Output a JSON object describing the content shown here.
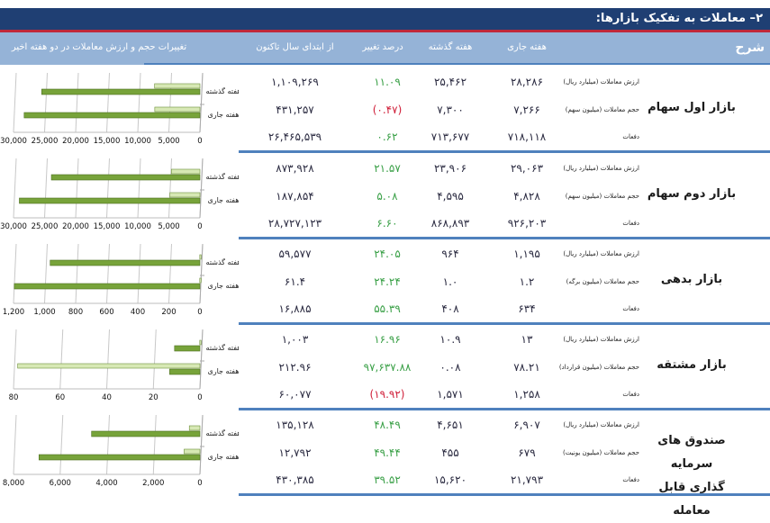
{
  "title": "۲– معاملات به تفکیک بازارها:",
  "header": {
    "description": "شرح",
    "current_week": "هفته جاری",
    "last_week": "هفته گذشته",
    "pct_change": "درصد تغییر",
    "ytd": "از ابتدای سال تاکنون",
    "chart_title": "تغییرات حجم و ارزش معاملات در دو هفته اخیر"
  },
  "colors": {
    "title_band": "#1f3f73",
    "header_band": "#95b3d7",
    "separator": "#4f81bd",
    "positive": "#3aa047",
    "negative": "#d0203a",
    "bar_dark": "#77a33a",
    "bar_light": "#d7e8b5"
  },
  "markets": [
    {
      "name": "بازار اول سهام",
      "rows": [
        {
          "label": "ارزش معاملات (میلیارد ریال)",
          "current": "۲۸,۲۸۶",
          "previous": "۲۵,۴۶۲",
          "pct": "۱۱.۰۹",
          "pct_sign": "pos",
          "ytd": "۱,۱۰۹,۲۶۹"
        },
        {
          "label": "حجم معاملات (میلیون سهم)",
          "current": "۷,۲۶۶",
          "previous": "۷,۳۰۰",
          "pct": "(۰.۴۷)",
          "pct_sign": "neg",
          "ytd": "۴۳۱,۲۵۷"
        },
        {
          "label": "دفعات",
          "current": "۷۱۸,۱۱۸",
          "previous": "۷۱۳,۶۷۷",
          "pct": "۰.۶۲",
          "pct_sign": "pos",
          "ytd": "۲۶,۴۶۵,۵۳۹"
        }
      ]
    },
    {
      "name": "بازار دوم سهام",
      "rows": [
        {
          "label": "ارزش معاملات (میلیارد ریال)",
          "current": "۲۹,۰۶۳",
          "previous": "۲۳,۹۰۶",
          "pct": "۲۱.۵۷",
          "pct_sign": "pos",
          "ytd": "۸۷۳,۹۲۸"
        },
        {
          "label": "حجم معاملات (میلیون سهم)",
          "current": "۴,۸۲۸",
          "previous": "۴,۵۹۵",
          "pct": "۵.۰۸",
          "pct_sign": "pos",
          "ytd": "۱۸۷,۸۵۴"
        },
        {
          "label": "دفعات",
          "current": "۹۲۶,۲۰۳",
          "previous": "۸۶۸,۸۹۳",
          "pct": "۶.۶۰",
          "pct_sign": "pos",
          "ytd": "۲۸,۷۲۷,۱۲۳"
        }
      ]
    },
    {
      "name": "بازار بدهی",
      "rows": [
        {
          "label": "ارزش معاملات (میلیارد ریال)",
          "current": "۱,۱۹۵",
          "previous": "۹۶۴",
          "pct": "۲۴.۰۵",
          "pct_sign": "pos",
          "ytd": "۵۹,۵۷۷"
        },
        {
          "label": "حجم معاملات (میلیون برگه)",
          "current": "۱.۲",
          "previous": "۱.۰",
          "pct": "۲۴.۲۴",
          "pct_sign": "pos",
          "ytd": "۶۱.۴"
        },
        {
          "label": "دفعات",
          "current": "۶۳۴",
          "previous": "۴۰۸",
          "pct": "۵۵.۳۹",
          "pct_sign": "pos",
          "ytd": "۱۶,۸۸۵"
        }
      ]
    },
    {
      "name": "بازار مشتقه",
      "rows": [
        {
          "label": "ارزش معاملات (میلیارد ریال)",
          "current": "۱۳",
          "previous": "۱۰.۹",
          "pct": "۱۶.۹۶",
          "pct_sign": "pos",
          "ytd": "۱,۰۰۳"
        },
        {
          "label": "حجم معاملات (میلیون قرارداد)",
          "current": "۷۸.۲۱",
          "previous": "۰.۰۸",
          "pct": "۹۷,۶۳۷.۸۸",
          "pct_sign": "pos",
          "ytd": "۲۱۲.۹۶"
        },
        {
          "label": "دفعات",
          "current": "۱,۲۵۸",
          "previous": "۱,۵۷۱",
          "pct": "(۱۹.۹۲)",
          "pct_sign": "neg",
          "ytd": "۶۰,۰۷۷"
        }
      ]
    },
    {
      "name_line1": "صندوق های سرمایه",
      "name_line2": "گذاری قابل معامله",
      "rows": [
        {
          "label": "ارزش معاملات (میلیارد ریال)",
          "current": "۶,۹۰۷",
          "previous": "۴,۶۵۱",
          "pct": "۴۸.۴۹",
          "pct_sign": "pos",
          "ytd": "۱۳۵,۱۲۸"
        },
        {
          "label": "حجم معاملات (میلیون یونیت)",
          "current": "۶۷۹",
          "previous": "۴۵۵",
          "pct": "۴۹.۴۴",
          "pct_sign": "pos",
          "ytd": "۱۲,۷۹۲"
        },
        {
          "label": "دفعات",
          "current": "۲۱,۷۹۳",
          "previous": "۱۵,۶۲۰",
          "pct": "۳۹.۵۲",
          "pct_sign": "pos",
          "ytd": "۴۳۰,۳۸۵"
        }
      ]
    }
  ],
  "chart_data": [
    {
      "type": "bar",
      "orientation": "horizontal-reversed",
      "categories": [
        "هفته گذشته",
        "هفته جاری"
      ],
      "series": [
        {
          "name": "value",
          "values": [
            25462,
            28286
          ]
        },
        {
          "name": "volume",
          "values": [
            7300,
            7266
          ]
        }
      ],
      "ticks": [
        "30,000",
        "25,000",
        "20,000",
        "15,000",
        "10,000",
        "5,000",
        "0"
      ],
      "xlim": [
        0,
        30000
      ]
    },
    {
      "type": "bar",
      "orientation": "horizontal-reversed",
      "categories": [
        "هفته گذشته",
        "هفته جاری"
      ],
      "series": [
        {
          "name": "value",
          "values": [
            23906,
            29063
          ]
        },
        {
          "name": "volume",
          "values": [
            4595,
            4828
          ]
        }
      ],
      "ticks": [
        "30,000",
        "25,000",
        "20,000",
        "15,000",
        "10,000",
        "5,000",
        "0"
      ],
      "xlim": [
        0,
        30000
      ]
    },
    {
      "type": "bar",
      "orientation": "horizontal-reversed",
      "categories": [
        "هفته گذشته",
        "هفته جاری"
      ],
      "series": [
        {
          "name": "value",
          "values": [
            964,
            1195
          ]
        },
        {
          "name": "volume",
          "values": [
            1.0,
            1.2
          ]
        }
      ],
      "ticks": [
        "1,200",
        "1,000",
        "800",
        "600",
        "400",
        "200",
        "0"
      ],
      "xlim": [
        0,
        1200
      ]
    },
    {
      "type": "bar",
      "orientation": "horizontal-reversed",
      "categories": [
        "هفته گذشته",
        "هفته جاری"
      ],
      "series": [
        {
          "name": "value",
          "values": [
            10.9,
            13
          ]
        },
        {
          "name": "volume",
          "values": [
            0.08,
            78.21
          ]
        }
      ],
      "ticks": [
        "80",
        "60",
        "40",
        "20",
        "0"
      ],
      "xlim": [
        0,
        80
      ]
    },
    {
      "type": "bar",
      "orientation": "horizontal-reversed",
      "categories": [
        "هفته گذشته",
        "هفته جاری"
      ],
      "series": [
        {
          "name": "value",
          "values": [
            4651,
            6907
          ]
        },
        {
          "name": "volume",
          "values": [
            455,
            679
          ]
        }
      ],
      "ticks": [
        "8,000",
        "6,000",
        "4,000",
        "2,000",
        "0"
      ],
      "xlim": [
        0,
        8000
      ]
    }
  ]
}
